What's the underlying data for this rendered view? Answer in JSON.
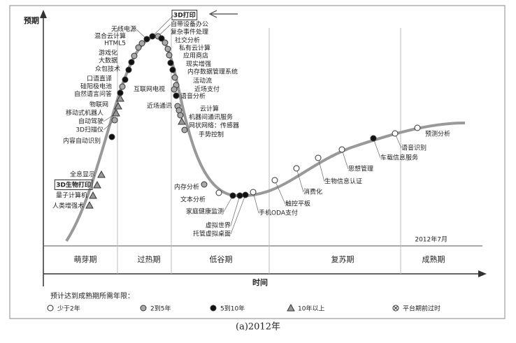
{
  "y_label": "预期",
  "x_label": "时间",
  "date": "2012年7月",
  "phases": [
    "萌芽期",
    "过热期",
    "低谷期",
    "复苏期",
    "成熟期"
  ],
  "nodes": [
    {
      "label": "无线电源",
      "marker": "5to10"
    },
    {
      "label": "混合云计算",
      "marker": "2to5"
    },
    {
      "label": "HTML5",
      "marker": "2to5"
    },
    {
      "label": "游戏化",
      "marker": "2to5"
    },
    {
      "label": "大数据",
      "marker": "5to10"
    },
    {
      "label": "众包技术",
      "marker": "5to10"
    },
    {
      "label": "口语直译",
      "marker": "5to10"
    },
    {
      "label": "硅阳极电池",
      "marker": "2to5"
    },
    {
      "label": "自然语言问答",
      "marker": "5to10"
    },
    {
      "label": "物联网",
      "marker": "over10"
    },
    {
      "label": "移动式机器人",
      "marker": "over10"
    },
    {
      "label": "自动驾驶",
      "marker": "over10"
    },
    {
      "label": "3D扫描仪",
      "marker": "2to5"
    },
    {
      "label": "内容自动识别",
      "marker": "5to10"
    },
    {
      "label": "全息显示",
      "marker": "over10"
    },
    {
      "label": "3D生物打印",
      "marker": "over10",
      "boxed": true
    },
    {
      "label": "量子计算机",
      "marker": "over10"
    },
    {
      "label": "人类增强术",
      "marker": "over10"
    },
    {
      "label": "3D打印",
      "marker": "5to10",
      "boxed": true
    },
    {
      "label": "自带设备办公",
      "marker": "2to5"
    },
    {
      "label": "复杂事件处理",
      "marker": "5to10"
    },
    {
      "label": "社交分析",
      "marker": "2to5"
    },
    {
      "label": "私有云计算",
      "marker": "2to5"
    },
    {
      "label": "应用商店",
      "marker": "2to5"
    },
    {
      "label": "现实增强",
      "marker": "5to10"
    },
    {
      "label": "内存数据管理系统",
      "marker": "5to10"
    },
    {
      "label": "活动流",
      "marker": "2to5"
    },
    {
      "label": "近场支付",
      "marker": "2to5"
    },
    {
      "label": "互联网电视",
      "marker": "2to5"
    },
    {
      "label": "语音分析",
      "marker": "5to10"
    },
    {
      "label": "近场通讯",
      "marker": "2to5"
    },
    {
      "label": "云计算",
      "marker": "2to5"
    },
    {
      "label": "机器间通讯服务",
      "marker": "2to5"
    },
    {
      "label": "网状网络：传感器",
      "marker": "over10"
    },
    {
      "label": "手势控制",
      "marker": "2to5"
    },
    {
      "label": "内存分析",
      "marker": "2to5"
    },
    {
      "label": "文本分析",
      "marker": "under2"
    },
    {
      "label": "家庭健康监测",
      "marker": "5to10"
    },
    {
      "label": "虚拟世界",
      "marker": "5to10"
    },
    {
      "label": "托管虚拟桌面",
      "marker": "5to10"
    },
    {
      "label": "手机ODA支付",
      "marker": "under2"
    },
    {
      "label": "触控平板",
      "marker": "under2"
    },
    {
      "label": "消费化",
      "marker": "under2"
    },
    {
      "label": "生物信息认证",
      "marker": "under2"
    },
    {
      "label": "思想管理",
      "marker": "under2"
    },
    {
      "label": "车载信息服务",
      "marker": "5to10"
    },
    {
      "label": "语音识别",
      "marker": "under2"
    },
    {
      "label": "预测分析",
      "marker": "under2"
    }
  ],
  "legend": {
    "title": "预计达到成熟期所需年限：",
    "items": [
      {
        "marker": "under2",
        "label": "少于2年"
      },
      {
        "marker": "2to5",
        "label": "2到5年"
      },
      {
        "marker": "5to10",
        "label": "5到10年"
      },
      {
        "marker": "over10",
        "label": "10年以上"
      },
      {
        "marker": "obsolete",
        "label": "平台期前过时"
      }
    ]
  },
  "caption": "(a)2012年"
}
